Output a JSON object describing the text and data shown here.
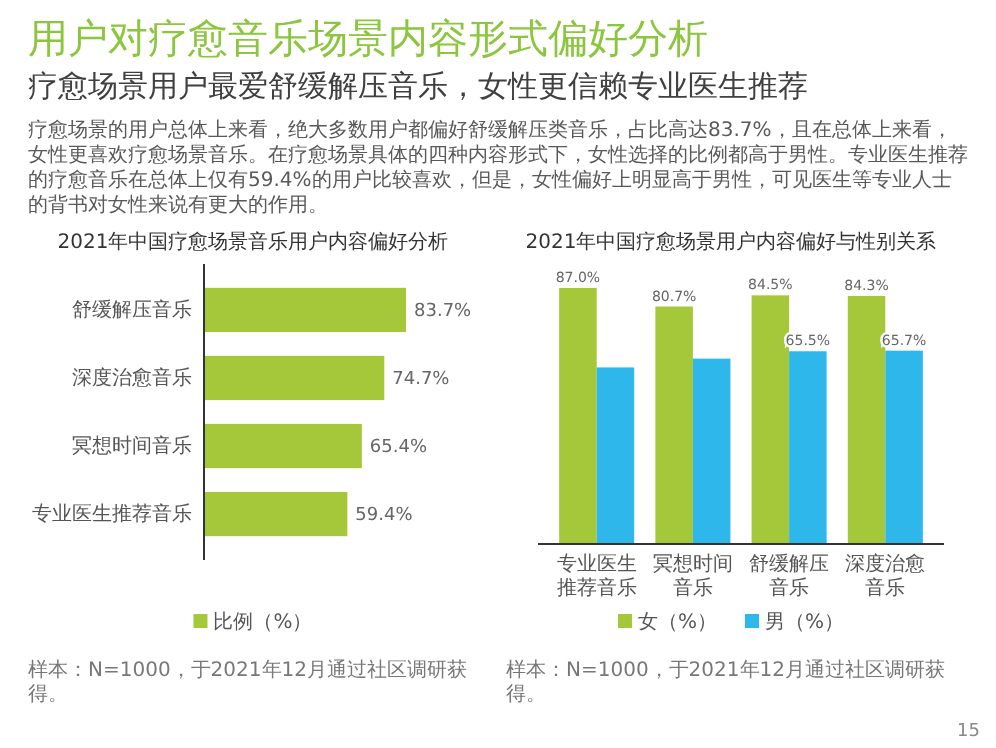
{
  "chart_data": [
    {
      "type": "other",
      "title": "用户对疗愈音乐场景内容形式偏好分析",
      "subtitle": "疗愈场景用户最爱舒缓解压音乐，女性更信赖专业医生推荐",
      "annotations": [
        "疗愈场景的用户总体上来看，绝大多数用户都偏好舒缓解压类音乐，占比高达83.7%，且在总体上来看，女性更喜欢疗愈场景音乐。在疗愈场景具体的四种内容形式下，女性选择的比例都高于男性。专业医生推荐的疗愈音乐在总体上仅有59.4%的用户比较喜欢，但是，女性偏好上明显高于男性，可见医生等专业人士的背书对女性来说有更大的作用。",
        "15"
      ]
    },
    {
      "type": "bar",
      "orientation": "horizontal",
      "title": "2021年中国疗愈场景音乐用户内容偏好分析",
      "categories": [
        "舒缓解压音乐",
        "深度治愈音乐",
        "冥想时间音乐",
        "专业医生推荐音乐"
      ],
      "series": [
        {
          "name": "比例（%）",
          "color": "#a5c83b",
          "values": [
            83.7,
            74.7,
            65.4,
            59.4
          ],
          "value_labels": [
            "83.7%",
            "74.7%",
            "65.4%",
            "59.4%"
          ]
        }
      ],
      "legend": "bottom",
      "annotations": [
        "样本：N=1000，于2021年12月通过社区调研获得。"
      ]
    },
    {
      "type": "bar",
      "title": "2021年中国疗愈场景用户内容偏好与性别关系",
      "categories": [
        "专业医生推荐音乐",
        "冥想时间音乐",
        "舒缓解压音乐",
        "深度治愈音乐"
      ],
      "series": [
        {
          "name": "女（%）",
          "color": "#a5c83b",
          "values": [
            87.0,
            80.7,
            84.5,
            84.3
          ],
          "value_labels": [
            "87.0%",
            "80.7%",
            "84.5%",
            "84.3%"
          ]
        },
        {
          "name": "男（%）",
          "color": "#2db7eb",
          "values": [
            60,
            63,
            65.5,
            65.7
          ],
          "value_labels": [
            null,
            null,
            "65.5%",
            "65.7%"
          ]
        }
      ],
      "legend": "bottom",
      "annotations": [
        "样本：N=1000，于2021年12月通过社区调研获得。"
      ]
    }
  ]
}
